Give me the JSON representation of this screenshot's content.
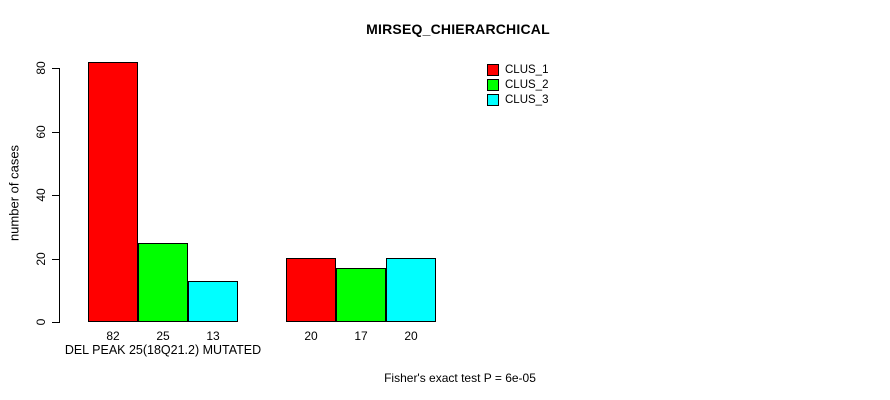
{
  "chart_data": {
    "type": "bar",
    "title": "MIRSEQ_CHIERARCHICAL",
    "ylabel": "number of cases",
    "xlabel": "",
    "ylim": [
      0,
      80
    ],
    "yticks": [
      0,
      20,
      40,
      60,
      80
    ],
    "categories": [
      "DEL PEAK 25(18Q21.2) MUTATED",
      ""
    ],
    "series": [
      {
        "name": "CLUS_1",
        "color": "#FF0000",
        "values": [
          82,
          20
        ]
      },
      {
        "name": "CLUS_2",
        "color": "#00FF00",
        "values": [
          25,
          17
        ]
      },
      {
        "name": "CLUS_3",
        "color": "#00FFFF",
        "values": [
          13,
          20
        ]
      }
    ],
    "bar_value_labels": [
      "82",
      "25",
      "13",
      "20",
      "17",
      "20"
    ],
    "annotation": "Fisher's exact test P = 6e-05",
    "legend_position": "top-right",
    "grid": false,
    "background": "#FFFFFF"
  }
}
